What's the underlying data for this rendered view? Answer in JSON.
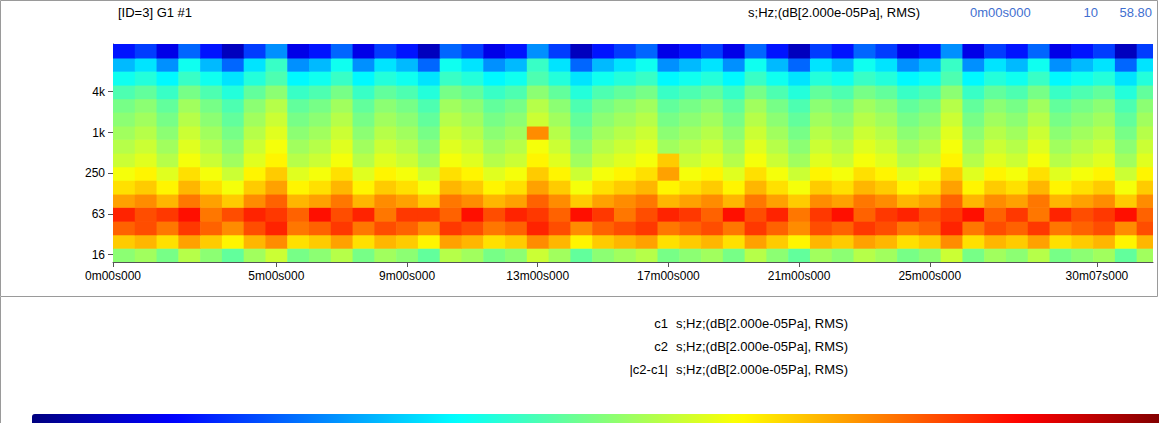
{
  "chart_data": {
    "type": "spectrogram",
    "header": {
      "title": "[ID=3] G1 #1",
      "units": "s;Hz;(dB[2.000e-05Pa], RMS)",
      "cursor": "0m00s000"
    },
    "color_range": [
      {
        "value": 10,
        "label": "10"
      },
      {
        "value": 58.8,
        "label": "58.80"
      }
    ],
    "colors": [
      "#00007f",
      "#0000ff",
      "#007fff",
      "#00ffff",
      "#7fff7f",
      "#ffff00",
      "#ff7f00",
      "#ff0000",
      "#7f0000"
    ],
    "cursor_rows": [
      {
        "name": "c1",
        "units": "s;Hz;(dB[2.000e-05Pa], RMS)"
      },
      {
        "name": "c2",
        "units": "s;Hz;(dB[2.000e-05Pa], RMS)"
      },
      {
        "name": "|c2-c1|",
        "units": "s;Hz;(dB[2.000e-05Pa], RMS)"
      }
    ],
    "log": "y",
    "grid": false,
    "xlim": [
      0,
      1910
    ],
    "xticks": [
      {
        "value": 0,
        "label": "0m00s000"
      },
      {
        "value": 300,
        "label": "5m00s000"
      },
      {
        "value": 540,
        "label": "9m00s000"
      },
      {
        "value": 780,
        "label": "13m00s000"
      },
      {
        "value": 1020,
        "label": "17m00s000"
      },
      {
        "value": 1260,
        "label": "21m00s000"
      },
      {
        "value": 1500,
        "label": "25m00s000"
      },
      {
        "value": 1807,
        "label": "30m07s000"
      }
    ],
    "ylim": [
      12.5,
      20000
    ],
    "yticks": [
      16,
      63,
      250,
      {
        "value": 1000,
        "label": "1k"
      },
      {
        "value": 4000,
        "label": "4k"
      }
    ],
    "time_edges": [
      0,
      40,
      80,
      120,
      160,
      200,
      240,
      280,
      320,
      360,
      400,
      440,
      480,
      520,
      560,
      600,
      640,
      680,
      720,
      760,
      800,
      840,
      880,
      920,
      960,
      1000,
      1040,
      1080,
      1120,
      1160,
      1200,
      1240,
      1280,
      1320,
      1360,
      1400,
      1440,
      1480,
      1520,
      1560,
      1600,
      1640,
      1680,
      1720,
      1760,
      1800,
      1840,
      1880,
      1920
    ],
    "freq_edges": [
      12.5,
      20,
      31.5,
      50,
      80,
      125,
      200,
      315,
      500,
      800,
      1250,
      2000,
      3150,
      5000,
      8000,
      12500,
      20000
    ],
    "levels": [
      [
        35,
        36,
        34,
        37,
        35,
        33,
        36,
        38,
        34,
        35,
        37,
        34,
        36,
        35,
        33,
        37,
        36,
        34,
        35,
        38,
        36,
        33,
        35,
        36,
        37,
        34,
        35,
        36,
        34,
        37,
        35,
        33,
        36,
        35,
        37,
        36,
        34,
        35,
        38,
        34,
        36,
        35,
        37,
        34,
        35,
        36,
        33,
        36
      ],
      [
        43,
        44,
        42,
        45,
        43,
        41,
        44,
        46,
        42,
        43,
        45,
        42,
        44,
        43,
        41,
        45,
        44,
        42,
        43,
        46,
        44,
        41,
        43,
        44,
        45,
        42,
        43,
        44,
        42,
        45,
        43,
        41,
        44,
        43,
        45,
        44,
        42,
        43,
        46,
        42,
        44,
        43,
        45,
        42,
        43,
        44,
        41,
        44
      ],
      [
        48,
        49,
        47,
        50,
        48,
        46,
        49,
        51,
        47,
        48,
        50,
        47,
        49,
        48,
        46,
        50,
        49,
        47,
        48,
        51,
        49,
        46,
        48,
        49,
        50,
        47,
        48,
        49,
        47,
        50,
        48,
        46,
        49,
        48,
        50,
        49,
        47,
        48,
        51,
        47,
        49,
        48,
        50,
        47,
        48,
        49,
        46,
        49
      ],
      [
        51,
        49,
        50,
        52,
        47,
        49,
        51,
        50,
        48,
        52,
        49,
        51,
        47,
        50,
        50,
        48,
        52,
        49,
        51,
        50,
        48,
        52,
        50,
        47,
        49,
        51,
        50,
        48,
        52,
        49,
        51,
        47,
        50,
        52,
        48,
        50,
        51,
        49,
        50,
        52,
        48,
        50,
        47,
        51,
        49,
        50,
        52,
        48
      ],
      [
        45,
        46,
        44,
        47,
        45,
        43,
        46,
        48,
        44,
        45,
        47,
        44,
        46,
        45,
        43,
        47,
        46,
        44,
        45,
        48,
        46,
        43,
        45,
        46,
        47,
        44,
        45,
        46,
        44,
        47,
        45,
        43,
        46,
        45,
        47,
        46,
        44,
        45,
        48,
        44,
        46,
        45,
        47,
        44,
        45,
        46,
        43,
        46
      ],
      [
        42,
        43,
        41,
        44,
        42,
        40,
        43,
        45,
        41,
        42,
        44,
        41,
        43,
        42,
        40,
        44,
        43,
        41,
        42,
        45,
        43,
        40,
        42,
        43,
        44,
        41,
        42,
        43,
        41,
        44,
        42,
        40,
        43,
        42,
        44,
        43,
        41,
        42,
        45,
        41,
        43,
        42,
        44,
        41,
        42,
        43,
        40,
        43
      ],
      [
        40,
        41,
        39,
        42,
        40,
        38,
        41,
        43,
        39,
        40,
        42,
        39,
        41,
        40,
        38,
        42,
        41,
        39,
        40,
        43,
        41,
        38,
        40,
        41,
        42,
        45,
        40,
        41,
        39,
        42,
        40,
        38,
        41,
        40,
        42,
        41,
        39,
        40,
        43,
        39,
        41,
        40,
        42,
        39,
        40,
        41,
        38,
        41
      ],
      [
        38,
        39,
        37,
        40,
        38,
        36,
        39,
        41,
        37,
        38,
        40,
        37,
        39,
        38,
        36,
        40,
        39,
        37,
        38,
        41,
        39,
        36,
        38,
        39,
        40,
        43,
        38,
        39,
        37,
        40,
        38,
        36,
        39,
        38,
        40,
        39,
        37,
        38,
        41,
        37,
        39,
        38,
        40,
        37,
        38,
        39,
        36,
        39
      ],
      [
        37,
        38,
        36,
        39,
        37,
        35,
        38,
        40,
        36,
        37,
        39,
        36,
        38,
        37,
        35,
        39,
        38,
        36,
        37,
        40,
        38,
        35,
        37,
        38,
        39,
        36,
        37,
        38,
        36,
        39,
        37,
        35,
        38,
        37,
        39,
        38,
        36,
        37,
        40,
        36,
        38,
        37,
        39,
        36,
        37,
        38,
        35,
        38
      ],
      [
        36,
        37,
        35,
        38,
        36,
        34,
        37,
        39,
        35,
        36,
        38,
        35,
        37,
        36,
        34,
        38,
        37,
        35,
        36,
        46,
        37,
        34,
        36,
        37,
        38,
        35,
        36,
        37,
        35,
        38,
        36,
        34,
        37,
        36,
        38,
        37,
        35,
        36,
        39,
        35,
        37,
        36,
        38,
        35,
        36,
        37,
        34,
        37
      ],
      [
        35,
        36,
        34,
        37,
        35,
        33,
        36,
        38,
        34,
        35,
        37,
        34,
        36,
        35,
        33,
        37,
        36,
        34,
        35,
        38,
        36,
        33,
        35,
        36,
        37,
        34,
        35,
        36,
        34,
        37,
        35,
        33,
        36,
        35,
        37,
        36,
        34,
        35,
        38,
        34,
        36,
        35,
        37,
        34,
        35,
        36,
        33,
        36
      ],
      [
        34,
        35,
        33,
        36,
        34,
        32,
        35,
        37,
        33,
        34,
        36,
        33,
        35,
        34,
        32,
        36,
        35,
        33,
        34,
        37,
        35,
        32,
        34,
        35,
        36,
        33,
        34,
        35,
        33,
        36,
        34,
        32,
        35,
        34,
        36,
        35,
        33,
        34,
        37,
        33,
        35,
        34,
        36,
        33,
        34,
        35,
        32,
        35
      ],
      [
        32,
        33,
        31,
        34,
        32,
        30,
        33,
        35,
        31,
        32,
        34,
        31,
        33,
        32,
        30,
        34,
        33,
        31,
        32,
        35,
        33,
        30,
        32,
        33,
        34,
        31,
        32,
        33,
        31,
        34,
        32,
        30,
        33,
        32,
        34,
        33,
        31,
        32,
        35,
        31,
        33,
        32,
        34,
        31,
        32,
        33,
        30,
        33
      ],
      [
        29,
        30,
        28,
        31,
        29,
        27,
        30,
        32,
        28,
        29,
        31,
        28,
        30,
        29,
        27,
        31,
        30,
        28,
        29,
        32,
        30,
        27,
        29,
        30,
        31,
        28,
        29,
        30,
        28,
        31,
        29,
        27,
        30,
        29,
        31,
        30,
        28,
        29,
        32,
        28,
        30,
        29,
        31,
        28,
        29,
        30,
        27,
        30
      ],
      [
        25,
        27,
        23,
        29,
        25,
        21,
        27,
        31,
        23,
        25,
        29,
        23,
        27,
        25,
        21,
        29,
        27,
        23,
        25,
        31,
        27,
        21,
        25,
        27,
        29,
        23,
        25,
        27,
        23,
        29,
        25,
        21,
        27,
        25,
        29,
        27,
        23,
        25,
        31,
        23,
        27,
        25,
        29,
        23,
        25,
        27,
        21,
        27
      ],
      [
        17,
        19,
        15,
        21,
        17,
        13,
        19,
        23,
        15,
        17,
        21,
        15,
        19,
        17,
        13,
        21,
        19,
        15,
        17,
        23,
        19,
        13,
        17,
        19,
        21,
        15,
        17,
        19,
        15,
        21,
        17,
        13,
        19,
        17,
        21,
        19,
        15,
        17,
        23,
        15,
        19,
        17,
        21,
        15,
        17,
        19,
        13,
        19
      ]
    ]
  }
}
